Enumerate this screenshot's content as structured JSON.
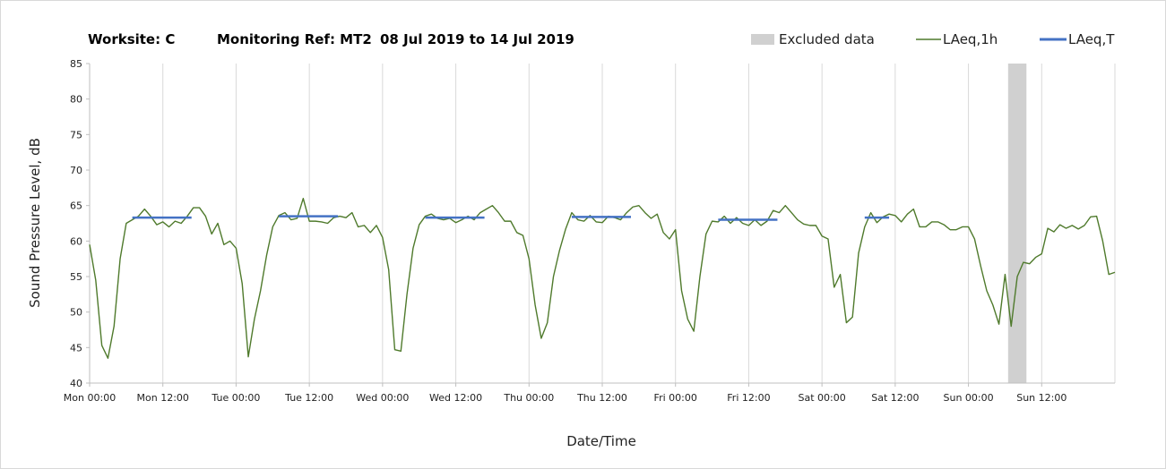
{
  "chart_data": {
    "type": "line",
    "title": {
      "worksite": "Worksite: C",
      "monitoring_ref": "Monitoring Ref: MT2",
      "date_range": "08 Jul 2019 to 14 Jul 2019"
    },
    "xlabel": "Date/Time",
    "ylabel": "Sound Pressure Level, dB",
    "ylim": [
      40,
      85
    ],
    "y_ticks": [
      40,
      45,
      50,
      55,
      60,
      65,
      70,
      75,
      80,
      85
    ],
    "xlim_hours": [
      0,
      168
    ],
    "x_ticks": [
      {
        "hours": 0,
        "label": "Mon 00:00"
      },
      {
        "hours": 12,
        "label": "Mon 12:00"
      },
      {
        "hours": 24,
        "label": "Tue 00:00"
      },
      {
        "hours": 36,
        "label": "Tue 12:00"
      },
      {
        "hours": 48,
        "label": "Wed 00:00"
      },
      {
        "hours": 60,
        "label": "Wed 12:00"
      },
      {
        "hours": 72,
        "label": "Thu 00:00"
      },
      {
        "hours": 84,
        "label": "Thu 12:00"
      },
      {
        "hours": 96,
        "label": "Fri 00:00"
      },
      {
        "hours": 108,
        "label": "Fri 12:00"
      },
      {
        "hours": 120,
        "label": "Sat 00:00"
      },
      {
        "hours": 132,
        "label": "Sat 12:00"
      },
      {
        "hours": 144,
        "label": "Sun 00:00"
      },
      {
        "hours": 156,
        "label": "Sun 12:00"
      }
    ],
    "grid": "vertical",
    "legend": {
      "position": "top-right",
      "entries": [
        {
          "label": "Excluded data",
          "color": "#d0d0d0",
          "kind": "box"
        },
        {
          "label": "LAeq,1h",
          "color": "#4f7a2c",
          "kind": "line"
        },
        {
          "label": "LAeq,T",
          "color": "#4472c4",
          "kind": "line"
        }
      ]
    },
    "excluded_ranges": [
      [
        150.5,
        153.5
      ]
    ],
    "series": [
      {
        "name": "LAeq,1h",
        "color": "#4f7a2c",
        "points": [
          [
            0,
            59.5
          ],
          [
            1,
            54.5
          ],
          [
            2,
            45.3
          ],
          [
            3,
            43.5
          ],
          [
            4,
            48
          ],
          [
            5,
            57.5
          ],
          [
            6,
            62.5
          ],
          [
            7,
            63
          ],
          [
            8,
            63.5
          ],
          [
            9,
            64.5
          ],
          [
            10,
            63.5
          ],
          [
            11,
            62.3
          ],
          [
            12,
            62.7
          ],
          [
            13,
            62
          ],
          [
            14,
            62.8
          ],
          [
            15,
            62.5
          ],
          [
            16,
            63.5
          ],
          [
            17,
            64.7
          ],
          [
            18,
            64.7
          ],
          [
            19,
            63.5
          ],
          [
            20,
            61
          ],
          [
            21,
            62.5
          ],
          [
            22,
            59.5
          ],
          [
            23,
            60
          ],
          [
            24,
            59
          ],
          [
            25,
            54
          ],
          [
            26,
            43.7
          ],
          [
            27,
            49
          ],
          [
            28,
            53
          ],
          [
            29,
            58
          ],
          [
            30,
            62
          ],
          [
            31,
            63.6
          ],
          [
            32,
            64
          ],
          [
            33,
            63
          ],
          [
            34,
            63.2
          ],
          [
            35,
            66
          ],
          [
            36,
            62.8
          ],
          [
            37,
            62.8
          ],
          [
            38,
            62.7
          ],
          [
            39,
            62.5
          ],
          [
            40,
            63.3
          ],
          [
            41,
            63.5
          ],
          [
            42,
            63.3
          ],
          [
            43,
            64
          ],
          [
            44,
            62
          ],
          [
            45,
            62.2
          ],
          [
            46,
            61.2
          ],
          [
            47,
            62.2
          ],
          [
            48,
            60.5
          ],
          [
            49,
            56
          ],
          [
            50,
            44.7
          ],
          [
            51,
            44.5
          ],
          [
            52,
            52.5
          ],
          [
            53,
            59
          ],
          [
            54,
            62.3
          ],
          [
            55,
            63.5
          ],
          [
            56,
            63.8
          ],
          [
            57,
            63.2
          ],
          [
            58,
            63
          ],
          [
            59,
            63.2
          ],
          [
            60,
            62.6
          ],
          [
            61,
            63
          ],
          [
            62,
            63.5
          ],
          [
            63,
            63
          ],
          [
            64,
            64
          ],
          [
            65,
            64.5
          ],
          [
            66,
            65
          ],
          [
            67,
            64
          ],
          [
            68,
            62.8
          ],
          [
            69,
            62.8
          ],
          [
            70,
            61.2
          ],
          [
            71,
            60.8
          ],
          [
            72,
            57.5
          ],
          [
            73,
            51
          ],
          [
            74,
            46.3
          ],
          [
            75,
            48.5
          ],
          [
            76,
            55
          ],
          [
            77,
            58.7
          ],
          [
            78,
            61.7
          ],
          [
            79,
            64
          ],
          [
            80,
            63
          ],
          [
            81,
            62.8
          ],
          [
            82,
            63.6
          ],
          [
            83,
            62.7
          ],
          [
            84,
            62.6
          ],
          [
            85,
            63.5
          ],
          [
            86,
            63.3
          ],
          [
            87,
            63
          ],
          [
            88,
            64
          ],
          [
            89,
            64.8
          ],
          [
            90,
            65
          ],
          [
            91,
            64
          ],
          [
            92,
            63.2
          ],
          [
            93,
            63.8
          ],
          [
            94,
            61.2
          ],
          [
            95,
            60.3
          ],
          [
            96,
            61.6
          ],
          [
            97,
            53
          ],
          [
            98,
            49
          ],
          [
            99,
            47.3
          ],
          [
            100,
            55
          ],
          [
            101,
            61
          ],
          [
            102,
            62.8
          ],
          [
            103,
            62.7
          ],
          [
            104,
            63.5
          ],
          [
            105,
            62.5
          ],
          [
            106,
            63.3
          ],
          [
            107,
            62.5
          ],
          [
            108,
            62.2
          ],
          [
            109,
            63
          ],
          [
            110,
            62.2
          ],
          [
            111,
            62.8
          ],
          [
            112,
            64.3
          ],
          [
            113,
            64
          ],
          [
            114,
            65
          ],
          [
            115,
            64
          ],
          [
            116,
            63
          ],
          [
            117,
            62.4
          ],
          [
            118,
            62.2
          ],
          [
            119,
            62.2
          ],
          [
            120,
            60.7
          ],
          [
            121,
            60.3
          ],
          [
            122,
            53.5
          ],
          [
            123,
            55.3
          ],
          [
            124,
            48.5
          ],
          [
            125,
            49.3
          ],
          [
            126,
            58.3
          ],
          [
            127,
            62
          ],
          [
            128,
            64
          ],
          [
            129,
            62.6
          ],
          [
            130,
            63.4
          ],
          [
            131,
            63.8
          ],
          [
            132,
            63.6
          ],
          [
            133,
            62.7
          ],
          [
            134,
            63.8
          ],
          [
            135,
            64.5
          ],
          [
            136,
            62
          ],
          [
            137,
            62
          ],
          [
            138,
            62.7
          ],
          [
            139,
            62.7
          ],
          [
            140,
            62.3
          ],
          [
            141,
            61.6
          ],
          [
            142,
            61.6
          ],
          [
            143,
            62
          ],
          [
            144,
            62
          ],
          [
            145,
            60.3
          ],
          [
            146,
            56.5
          ],
          [
            147,
            53
          ],
          [
            148,
            51
          ],
          [
            149,
            48.3
          ],
          [
            150,
            55.3
          ],
          [
            151,
            48
          ],
          [
            152,
            55
          ],
          [
            153,
            57
          ],
          [
            154,
            56.8
          ],
          [
            155,
            57.7
          ],
          [
            156,
            58.2
          ],
          [
            157,
            61.8
          ],
          [
            158,
            61.3
          ],
          [
            159,
            62.3
          ],
          [
            160,
            61.8
          ],
          [
            161,
            62.2
          ],
          [
            162,
            61.7
          ],
          [
            163,
            62.2
          ],
          [
            164,
            63.4
          ],
          [
            165,
            63.5
          ],
          [
            166,
            60
          ],
          [
            167,
            55.3
          ],
          [
            168,
            55.6
          ]
        ]
      },
      {
        "name": "LAeq,T",
        "color": "#4472c4",
        "segments": [
          {
            "start": 7,
            "end": 16.7,
            "value": 63.3
          },
          {
            "start": 31,
            "end": 40.7,
            "value": 63.5
          },
          {
            "start": 55,
            "end": 64.7,
            "value": 63.3
          },
          {
            "start": 79,
            "end": 88.7,
            "value": 63.4
          },
          {
            "start": 103,
            "end": 112.7,
            "value": 63
          },
          {
            "start": 127,
            "end": 131,
            "value": 63.3
          }
        ]
      }
    ]
  }
}
